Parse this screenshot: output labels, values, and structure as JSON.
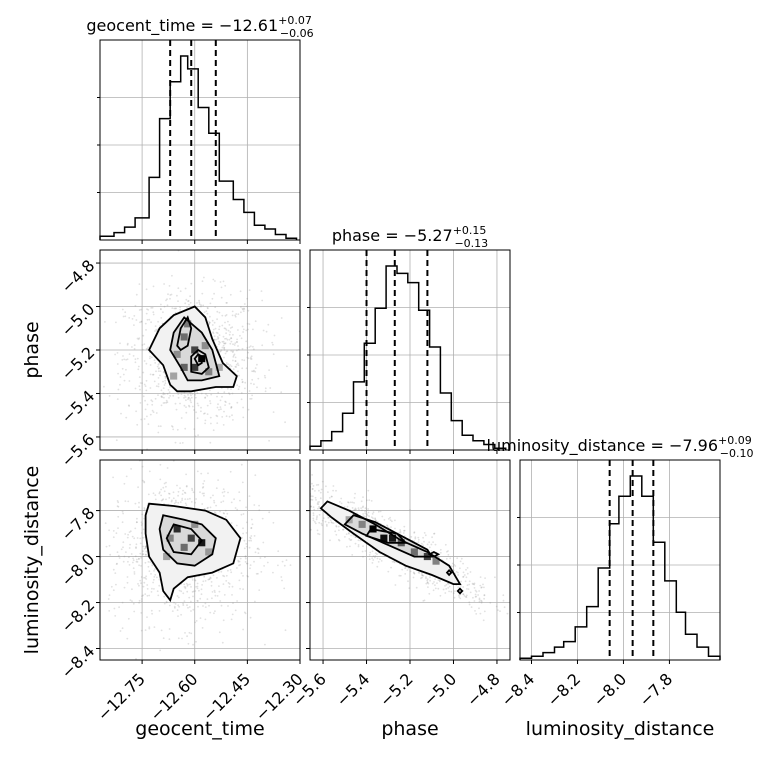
{
  "chart_data": {
    "type": "corner",
    "parameters": [
      {
        "name": "geocent_time",
        "axis_label": "geocent_time",
        "title_prefix": "geocent_time = ",
        "median": "−12.61",
        "plus": "+0.07",
        "minus": "−0.06",
        "quantiles": [
          -12.67,
          -12.61,
          -12.54
        ],
        "range": [
          -12.87,
          -12.3
        ],
        "ticks": [
          -12.75,
          -12.6,
          -12.45,
          -12.3
        ],
        "tick_labels": [
          "−12.75",
          "−12.60",
          "−12.45",
          "−12.30"
        ],
        "hist_edges": [
          -12.87,
          -12.83,
          -12.8,
          -12.77,
          -12.73,
          -12.7,
          -12.67,
          -12.64,
          -12.62,
          -12.59,
          -12.56,
          -12.53,
          -12.49,
          -12.46,
          -12.43,
          -12.4,
          -12.37,
          -12.34,
          -12.31
        ],
        "hist_heights": [
          0.02,
          0.04,
          0.07,
          0.12,
          0.34,
          0.66,
          0.86,
          1.0,
          0.93,
          0.72,
          0.58,
          0.32,
          0.22,
          0.15,
          0.08,
          0.06,
          0.03,
          0.01
        ]
      },
      {
        "name": "phase",
        "axis_label": "phase",
        "title_prefix": "phase = ",
        "median": "−5.27",
        "plus": "+0.15",
        "minus": "−0.13",
        "quantiles": [
          -5.4,
          -5.27,
          -5.12
        ],
        "range": [
          -5.66,
          -4.74
        ],
        "ticks": [
          -5.6,
          -5.4,
          -5.2,
          -5.0,
          -4.8
        ],
        "tick_labels": [
          "−5.6",
          "−5.4",
          "−5.2",
          "−5.0",
          "−4.8"
        ],
        "hist_edges": [
          -5.66,
          -5.61,
          -5.56,
          -5.51,
          -5.46,
          -5.41,
          -5.36,
          -5.31,
          -5.26,
          -5.21,
          -5.16,
          -5.11,
          -5.06,
          -5.01,
          -4.96,
          -4.91,
          -4.86,
          -4.81,
          -4.76
        ],
        "hist_heights": [
          0.02,
          0.05,
          0.1,
          0.2,
          0.37,
          0.58,
          0.77,
          1.0,
          0.96,
          0.91,
          0.76,
          0.56,
          0.31,
          0.16,
          0.08,
          0.05,
          0.03,
          0.01
        ]
      },
      {
        "name": "luminosity_distance",
        "axis_label": "luminosity_distance",
        "title_prefix": "luminosity_distance = ",
        "median": "−7.96",
        "plus": "+0.09",
        "minus": "−0.10",
        "quantiles": [
          -8.06,
          -7.96,
          -7.87
        ],
        "range": [
          -8.45,
          -7.58
        ],
        "ticks": [
          -8.4,
          -8.2,
          -8.0,
          -7.8
        ],
        "tick_labels": [
          "−8.4",
          "−8.2",
          "−8.0",
          "−7.8"
        ],
        "hist_edges": [
          -8.45,
          -8.4,
          -8.35,
          -8.3,
          -8.26,
          -8.21,
          -8.16,
          -8.11,
          -8.06,
          -8.02,
          -7.97,
          -7.92,
          -7.87,
          -7.82,
          -7.77,
          -7.73,
          -7.68,
          -7.63,
          -7.58
        ],
        "hist_heights": [
          0.01,
          0.02,
          0.04,
          0.07,
          0.1,
          0.18,
          0.29,
          0.5,
          0.74,
          0.89,
          1.0,
          0.89,
          0.64,
          0.43,
          0.26,
          0.14,
          0.07,
          0.02
        ]
      }
    ],
    "pairs": [
      {
        "row": 1,
        "col": 0,
        "xparam": "geocent_time",
        "yparam": "phase",
        "y_ticks": [
          -4.8,
          -5.0,
          -5.2,
          -5.4,
          -5.6
        ],
        "y_tick_labels": [
          "−4.8",
          "−5.0",
          "−5.2",
          "−5.4",
          "−5.6"
        ],
        "contours": [
          [
            [
              -12.65,
              -5.39
            ],
            [
              -12.61,
              -5.39
            ],
            [
              -12.54,
              -5.37
            ],
            [
              -12.49,
              -5.37
            ],
            [
              -12.48,
              -5.32
            ],
            [
              -12.52,
              -5.26
            ],
            [
              -12.55,
              -5.15
            ],
            [
              -12.57,
              -5.05
            ],
            [
              -12.6,
              -5.0
            ],
            [
              -12.66,
              -5.04
            ],
            [
              -12.7,
              -5.1
            ],
            [
              -12.73,
              -5.2
            ],
            [
              -12.69,
              -5.27
            ],
            [
              -12.67,
              -5.36
            ]
          ],
          [
            [
              -12.62,
              -5.34
            ],
            [
              -12.58,
              -5.34
            ],
            [
              -12.53,
              -5.32
            ],
            [
              -12.55,
              -5.2
            ],
            [
              -12.58,
              -5.12
            ],
            [
              -12.63,
              -5.05
            ],
            [
              -12.66,
              -5.12
            ],
            [
              -12.67,
              -5.2
            ],
            [
              -12.64,
              -5.28
            ]
          ],
          [
            [
              -12.61,
              -5.3
            ],
            [
              -12.58,
              -5.31
            ],
            [
              -12.56,
              -5.28
            ],
            [
              -12.57,
              -5.22
            ],
            [
              -12.59,
              -5.2
            ],
            [
              -12.61,
              -5.23
            ]
          ],
          [
            [
              -12.64,
              -5.2
            ],
            [
              -12.62,
              -5.18
            ],
            [
              -12.61,
              -5.1
            ],
            [
              -12.62,
              -5.05
            ],
            [
              -12.64,
              -5.1
            ],
            [
              -12.65,
              -5.18
            ]
          ],
          [
            [
              -12.59,
              -5.27
            ],
            [
              -12.58,
              -5.26
            ],
            [
              -12.58,
              -5.23
            ],
            [
              -12.59,
              -5.22
            ],
            [
              -12.6,
              -5.24
            ]
          ]
        ],
        "cells": [
          [
            -12.63,
            -5.28,
            0.55
          ],
          [
            -12.6,
            -5.28,
            0.75
          ],
          [
            -12.58,
            -5.24,
            1.0
          ],
          [
            -12.6,
            -5.2,
            0.7
          ],
          [
            -12.63,
            -5.14,
            0.5
          ],
          [
            -12.62,
            -5.08,
            0.45
          ],
          [
            -12.56,
            -5.3,
            0.4
          ],
          [
            -12.65,
            -5.22,
            0.35
          ],
          [
            -12.57,
            -5.18,
            0.35
          ],
          [
            -12.66,
            -5.32,
            0.25
          ],
          [
            -12.53,
            -5.28,
            0.2
          ]
        ]
      },
      {
        "row": 2,
        "col": 0,
        "xparam": "geocent_time",
        "yparam": "luminosity_distance",
        "y_ticks": [
          -7.8,
          -8.0,
          -8.2,
          -8.4
        ],
        "y_tick_labels": [
          "−7.8",
          "−8.0",
          "−8.2",
          "−8.4"
        ],
        "contours": [
          [
            [
              -12.73,
              -7.77
            ],
            [
              -12.66,
              -7.78
            ],
            [
              -12.57,
              -7.8
            ],
            [
              -12.51,
              -7.84
            ],
            [
              -12.47,
              -7.92
            ],
            [
              -12.49,
              -8.03
            ],
            [
              -12.55,
              -8.07
            ],
            [
              -12.62,
              -8.09
            ],
            [
              -12.66,
              -8.14
            ],
            [
              -12.67,
              -8.19
            ],
            [
              -12.69,
              -8.15
            ],
            [
              -12.7,
              -8.07
            ],
            [
              -12.73,
              -8.0
            ],
            [
              -12.74,
              -7.9
            ],
            [
              -12.74,
              -7.82
            ]
          ],
          [
            [
              -12.69,
              -7.82
            ],
            [
              -12.63,
              -7.84
            ],
            [
              -12.58,
              -7.86
            ],
            [
              -12.54,
              -7.92
            ],
            [
              -12.55,
              -7.99
            ],
            [
              -12.6,
              -8.04
            ],
            [
              -12.65,
              -8.03
            ],
            [
              -12.69,
              -7.97
            ],
            [
              -12.7,
              -7.88
            ]
          ],
          [
            [
              -12.66,
              -7.86
            ],
            [
              -12.61,
              -7.88
            ],
            [
              -12.58,
              -7.93
            ],
            [
              -12.61,
              -7.99
            ],
            [
              -12.66,
              -7.98
            ],
            [
              -12.68,
              -7.92
            ]
          ]
        ],
        "cells": [
          [
            -12.65,
            -7.88,
            0.8
          ],
          [
            -12.61,
            -7.92,
            0.7
          ],
          [
            -12.58,
            -7.94,
            0.9
          ],
          [
            -12.63,
            -7.96,
            0.5
          ],
          [
            -12.67,
            -7.92,
            0.4
          ],
          [
            -12.6,
            -7.86,
            0.35
          ],
          [
            -12.56,
            -7.98,
            0.3
          ],
          [
            -12.68,
            -8.0,
            0.25
          ]
        ]
      },
      {
        "row": 2,
        "col": 1,
        "xparam": "phase",
        "yparam": "luminosity_distance",
        "contours": [
          [
            [
              -5.58,
              -7.76
            ],
            [
              -5.48,
              -7.8
            ],
            [
              -5.36,
              -7.86
            ],
            [
              -5.24,
              -7.93
            ],
            [
              -5.12,
              -7.98
            ],
            [
              -5.02,
              -8.04
            ],
            [
              -4.97,
              -8.12
            ],
            [
              -5.0,
              -8.12
            ],
            [
              -5.1,
              -8.08
            ],
            [
              -5.22,
              -8.04
            ],
            [
              -5.34,
              -7.98
            ],
            [
              -5.46,
              -7.9
            ],
            [
              -5.56,
              -7.83
            ],
            [
              -5.61,
              -7.79
            ]
          ],
          [
            [
              -5.46,
              -7.82
            ],
            [
              -5.36,
              -7.85
            ],
            [
              -5.22,
              -7.92
            ],
            [
              -5.12,
              -7.97
            ],
            [
              -5.1,
              -8.0
            ],
            [
              -5.18,
              -8.0
            ],
            [
              -5.3,
              -7.95
            ],
            [
              -5.42,
              -7.9
            ],
            [
              -5.5,
              -7.86
            ]
          ],
          [
            [
              -5.38,
              -7.88
            ],
            [
              -5.26,
              -7.9
            ],
            [
              -5.22,
              -7.94
            ],
            [
              -5.3,
              -7.94
            ],
            [
              -5.4,
              -7.91
            ]
          ],
          [
            [
              -5.09,
              -7.98
            ],
            [
              -5.07,
              -7.99
            ],
            [
              -5.09,
              -8.0
            ],
            [
              -5.11,
              -7.99
            ]
          ],
          [
            [
              -5.02,
              -8.06
            ],
            [
              -5.01,
              -8.07
            ],
            [
              -5.02,
              -8.08
            ],
            [
              -5.03,
              -8.07
            ]
          ],
          [
            [
              -4.97,
              -8.14
            ],
            [
              -4.96,
              -8.15
            ],
            [
              -4.97,
              -8.16
            ],
            [
              -4.98,
              -8.15
            ]
          ]
        ],
        "cells": [
          [
            -5.37,
            -7.88,
            1.0
          ],
          [
            -5.32,
            -7.92,
            0.95
          ],
          [
            -5.28,
            -7.92,
            0.9
          ],
          [
            -5.24,
            -7.94,
            0.6
          ],
          [
            -5.42,
            -7.86,
            0.4
          ],
          [
            -5.18,
            -7.98,
            0.5
          ],
          [
            -5.12,
            -8.0,
            0.7
          ],
          [
            -5.08,
            -8.02,
            0.4
          ],
          [
            -5.48,
            -7.84,
            0.25
          ]
        ]
      }
    ]
  }
}
